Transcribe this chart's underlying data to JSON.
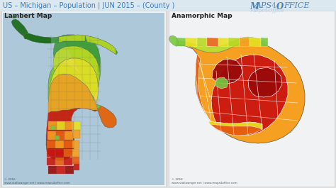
{
  "title": "US – Michigan – Population | JUN 2015 – (County )",
  "title_color": "#3a7abf",
  "bg_color": "#e0e0e0",
  "map_bg": "#b8cdd8",
  "left_label": "Lambert Map",
  "right_label": "Anamorphic Map",
  "footer": "© 2016\nwww.stallwanger.net | www.maps4office.com",
  "panel_bg": "#f0f2f4",
  "panel_border": "#cccccc",
  "dark_green": "#1a6b1a",
  "med_green": "#3a9a3a",
  "light_green": "#78c840",
  "yellow_green": "#b8d820",
  "yellow": "#e8e020",
  "orange": "#f5a020",
  "dark_orange": "#e86010",
  "red": "#cc1810",
  "dark_red": "#9a0a0a",
  "white": "#ffffff",
  "lake_color": "#adc8d8"
}
